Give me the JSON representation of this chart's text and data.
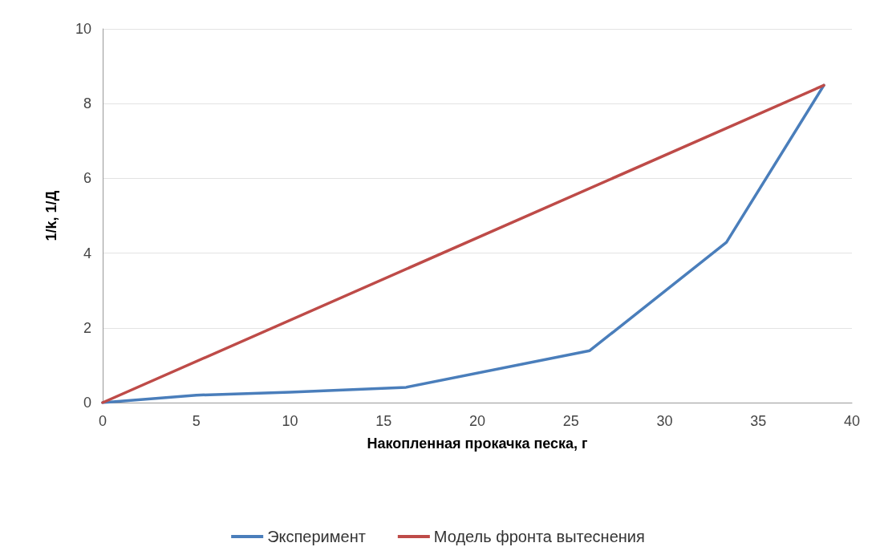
{
  "chart_data": {
    "type": "line",
    "xlabel": "Накопленная прокачка песка, г",
    "ylabel": "1/k, 1/Д",
    "xlim": [
      0,
      40
    ],
    "xticks": [
      0,
      5,
      10,
      15,
      20,
      25,
      30,
      35,
      40
    ],
    "ylim": [
      0,
      10
    ],
    "yticks": [
      0,
      2,
      4,
      6,
      8,
      10
    ],
    "series": [
      {
        "name": "Эксперимент",
        "color": "#4a7ebb",
        "x": [
          0,
          5,
          10,
          16.2,
          26,
          33.3,
          38.5
        ],
        "values": [
          0,
          0.2,
          0.28,
          0.41,
          1.39,
          4.29,
          8.49
        ]
      },
      {
        "name": "Модель фронта вытеснения",
        "color": "#be4b48",
        "x": [
          0,
          38.5
        ],
        "values": [
          0,
          8.49
        ]
      }
    ],
    "grid": "y",
    "legend": "bottom",
    "marker": "none",
    "line_style": "solid"
  }
}
